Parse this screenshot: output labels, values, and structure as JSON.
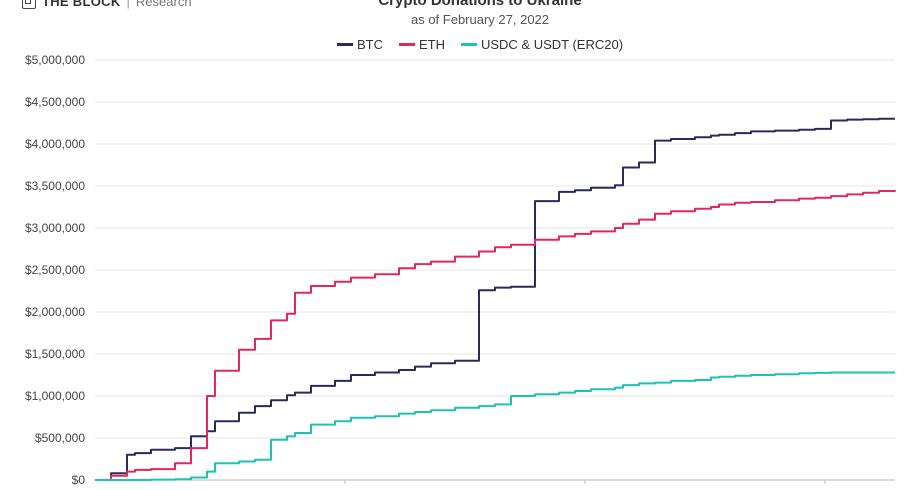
{
  "brand": {
    "logo_text": "THE BLOCK",
    "separator": "|",
    "subtext": "Research"
  },
  "chart_data": {
    "type": "line",
    "title": "Crypto Donations to Ukraine",
    "subtitle": "as of February 27, 2022",
    "xlabel": "",
    "ylabel": "",
    "ylim": [
      0,
      5000000
    ],
    "y_ticks": [
      0,
      500000,
      1000000,
      1500000,
      2000000,
      2500000,
      3000000,
      3500000,
      4000000,
      4500000,
      5000000
    ],
    "y_tick_labels": [
      "$0",
      "$500,000",
      "$1,000,000",
      "$1,500,000",
      "$2,000,000",
      "$2,500,000",
      "$3,000,000",
      "$3,500,000",
      "$4,000,000",
      "$4,500,000",
      "$5,000,000"
    ],
    "x": [
      0.0,
      0.02,
      0.04,
      0.05,
      0.07,
      0.1,
      0.12,
      0.14,
      0.15,
      0.18,
      0.2,
      0.22,
      0.24,
      0.25,
      0.27,
      0.3,
      0.32,
      0.35,
      0.38,
      0.4,
      0.42,
      0.45,
      0.48,
      0.5,
      0.52,
      0.55,
      0.58,
      0.6,
      0.62,
      0.65,
      0.66,
      0.68,
      0.7,
      0.72,
      0.75,
      0.77,
      0.78,
      0.8,
      0.82,
      0.85,
      0.88,
      0.9,
      0.92,
      0.94,
      0.96,
      0.98,
      1.0
    ],
    "series": [
      {
        "name": "BTC",
        "color": "#2b2a5c",
        "values": [
          0,
          80000,
          300000,
          320000,
          360000,
          380000,
          520000,
          580000,
          700000,
          800000,
          880000,
          950000,
          1010000,
          1040000,
          1120000,
          1180000,
          1250000,
          1280000,
          1310000,
          1350000,
          1390000,
          1420000,
          2260000,
          2290000,
          2300000,
          3320000,
          3430000,
          3450000,
          3480000,
          3510000,
          3720000,
          3780000,
          4040000,
          4060000,
          4080000,
          4100000,
          4110000,
          4130000,
          4150000,
          4160000,
          4170000,
          4180000,
          4280000,
          4290000,
          4295000,
          4300000,
          4300000
        ]
      },
      {
        "name": "ETH",
        "color": "#e0285e",
        "values": [
          0,
          50000,
          100000,
          120000,
          130000,
          200000,
          380000,
          1000000,
          1300000,
          1550000,
          1680000,
          1900000,
          1980000,
          2230000,
          2310000,
          2360000,
          2410000,
          2450000,
          2520000,
          2570000,
          2600000,
          2660000,
          2720000,
          2770000,
          2800000,
          2860000,
          2900000,
          2930000,
          2960000,
          3000000,
          3050000,
          3100000,
          3170000,
          3200000,
          3230000,
          3250000,
          3280000,
          3300000,
          3310000,
          3330000,
          3350000,
          3360000,
          3380000,
          3400000,
          3420000,
          3440000,
          3450000
        ]
      },
      {
        "name": "USDC & USDT (ERC20)",
        "color": "#1ec2b4",
        "values": [
          0,
          0,
          0,
          0,
          5000,
          10000,
          30000,
          100000,
          200000,
          220000,
          240000,
          480000,
          520000,
          560000,
          660000,
          700000,
          740000,
          760000,
          790000,
          810000,
          830000,
          860000,
          880000,
          900000,
          1000000,
          1020000,
          1040000,
          1060000,
          1080000,
          1100000,
          1130000,
          1150000,
          1160000,
          1180000,
          1190000,
          1220000,
          1230000,
          1240000,
          1250000,
          1260000,
          1270000,
          1275000,
          1280000,
          1280000,
          1280000,
          1280000,
          1280000
        ]
      }
    ]
  }
}
